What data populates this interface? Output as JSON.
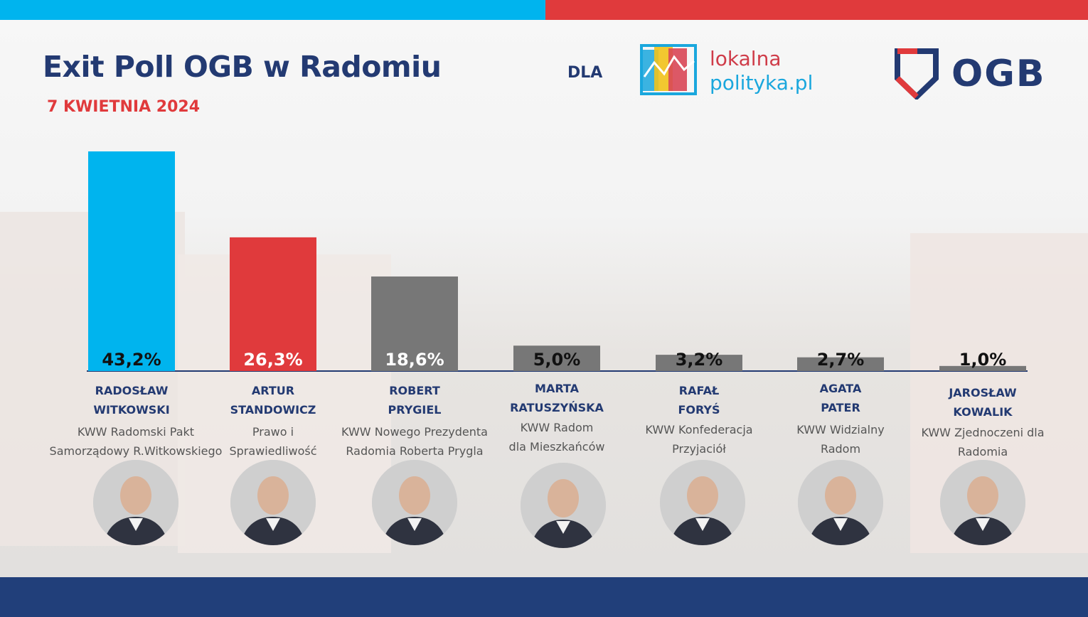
{
  "header": {
    "title": "Exit Poll OGB w Radomiu",
    "date": "7 KWIETNIA 2024",
    "dla": "DLA",
    "partner_line1": "lokalna",
    "partner_line2": "polityka.pl",
    "brand": "OGB"
  },
  "colors": {
    "blue": "#00b4ee",
    "red": "#e03a3c",
    "grey": "#777777",
    "navy": "#233a72"
  },
  "chart_data": {
    "type": "bar",
    "title": "Exit Poll OGB w Radomiu",
    "ylim": [
      0,
      45
    ],
    "categories": [
      "RADOSŁAW WITKOWSKI",
      "ARTUR STANDOWICZ",
      "ROBERT PRYGIEL",
      "MARTA RATUSZYŃSKA",
      "RAFAŁ FORYŚ",
      "AGATA PATER",
      "JAROSŁAW KOWALIK"
    ],
    "values": [
      43.2,
      26.3,
      18.6,
      5.0,
      3.2,
      2.7,
      1.0
    ],
    "labels": [
      "43,2%",
      "26,3%",
      "18,6%",
      "5,0%",
      "3,2%",
      "2,7%",
      "1,0%"
    ],
    "bar_colors": [
      "#00b4ee",
      "#e03a3c",
      "#777777",
      "#777777",
      "#777777",
      "#777777",
      "#777777"
    ]
  },
  "candidates": [
    {
      "name_line1": "RADOSŁAW",
      "name_line2": "WITKOWSKI",
      "party_line1": "KWW Radomski Pakt",
      "party_line2": "Samorządowy R.Witkowskiego"
    },
    {
      "name_line1": "ARTUR",
      "name_line2": "STANDOWICZ",
      "party_line1": "Prawo i",
      "party_line2": "Sprawiedliwość"
    },
    {
      "name_line1": "ROBERT",
      "name_line2": "PRYGIEL",
      "party_line1": "KWW Nowego Prezydenta",
      "party_line2": "Radomia Roberta Prygla"
    },
    {
      "name_line1": "MARTA",
      "name_line2": "RATUSZYŃSKA",
      "party_line1": "KWW Radom",
      "party_line2": "dla Mieszkańców"
    },
    {
      "name_line1": "RAFAŁ",
      "name_line2": "FORYŚ",
      "party_line1": "KWW Konfederacja",
      "party_line2": "Przyjaciół"
    },
    {
      "name_line1": "AGATA",
      "name_line2": "PATER",
      "party_line1": "KWW Widzialny",
      "party_line2": "Radom"
    },
    {
      "name_line1": "JAROSŁAW",
      "name_line2": "KOWALIK",
      "party_line1": "KWW Zjednoczeni dla",
      "party_line2": "Radomia"
    }
  ]
}
